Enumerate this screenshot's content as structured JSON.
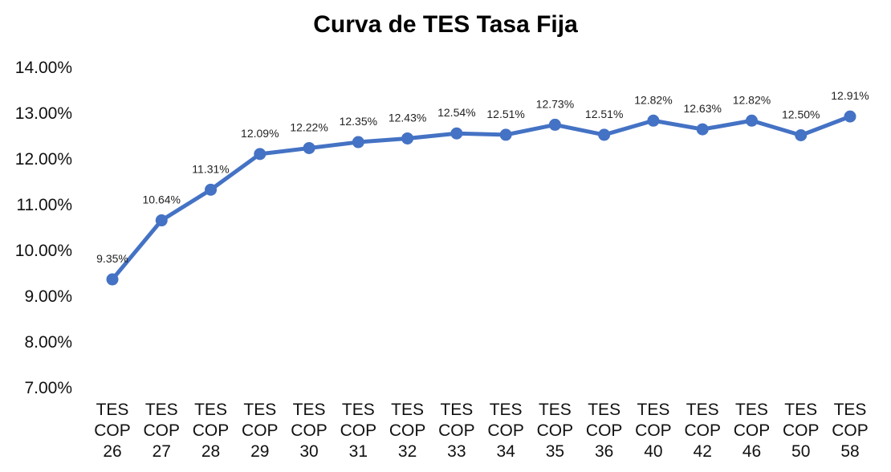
{
  "chart_data": {
    "type": "line",
    "title": "Curva de TES Tasa Fija",
    "xlabel": "",
    "ylabel": "",
    "ylim": [
      7,
      14
    ],
    "yticks": [
      "7.00%",
      "8.00%",
      "9.00%",
      "10.00%",
      "11.00%",
      "12.00%",
      "13.00%",
      "14.00%"
    ],
    "grid": false,
    "legend": "none",
    "color": "#4472C4",
    "categories": [
      [
        "TES",
        "COP",
        "26"
      ],
      [
        "TES",
        "COP",
        "27"
      ],
      [
        "TES",
        "COP",
        "28"
      ],
      [
        "TES",
        "COP",
        "29"
      ],
      [
        "TES",
        "COP",
        "30"
      ],
      [
        "TES",
        "COP",
        "31"
      ],
      [
        "TES",
        "COP",
        "32"
      ],
      [
        "TES",
        "COP",
        "33"
      ],
      [
        "TES",
        "COP",
        "34"
      ],
      [
        "TES",
        "COP",
        "35"
      ],
      [
        "TES",
        "COP",
        "36"
      ],
      [
        "TES",
        "COP",
        "40"
      ],
      [
        "TES",
        "COP",
        "42"
      ],
      [
        "TES",
        "COP",
        "46"
      ],
      [
        "TES",
        "COP",
        "50"
      ],
      [
        "TES",
        "COP",
        "58"
      ]
    ],
    "series": [
      {
        "name": "Curva de TES Tasa Fija",
        "values": [
          9.35,
          10.64,
          11.31,
          12.09,
          12.22,
          12.35,
          12.43,
          12.54,
          12.51,
          12.73,
          12.51,
          12.82,
          12.63,
          12.82,
          12.5,
          12.91
        ],
        "labels": [
          "9.35%",
          "10.64%",
          "11.31%",
          "12.09%",
          "12.22%",
          "12.35%",
          "12.43%",
          "12.54%",
          "12.51%",
          "12.73%",
          "12.51%",
          "12.82%",
          "12.63%",
          "12.82%",
          "12.50%",
          "12.91%"
        ]
      }
    ]
  }
}
